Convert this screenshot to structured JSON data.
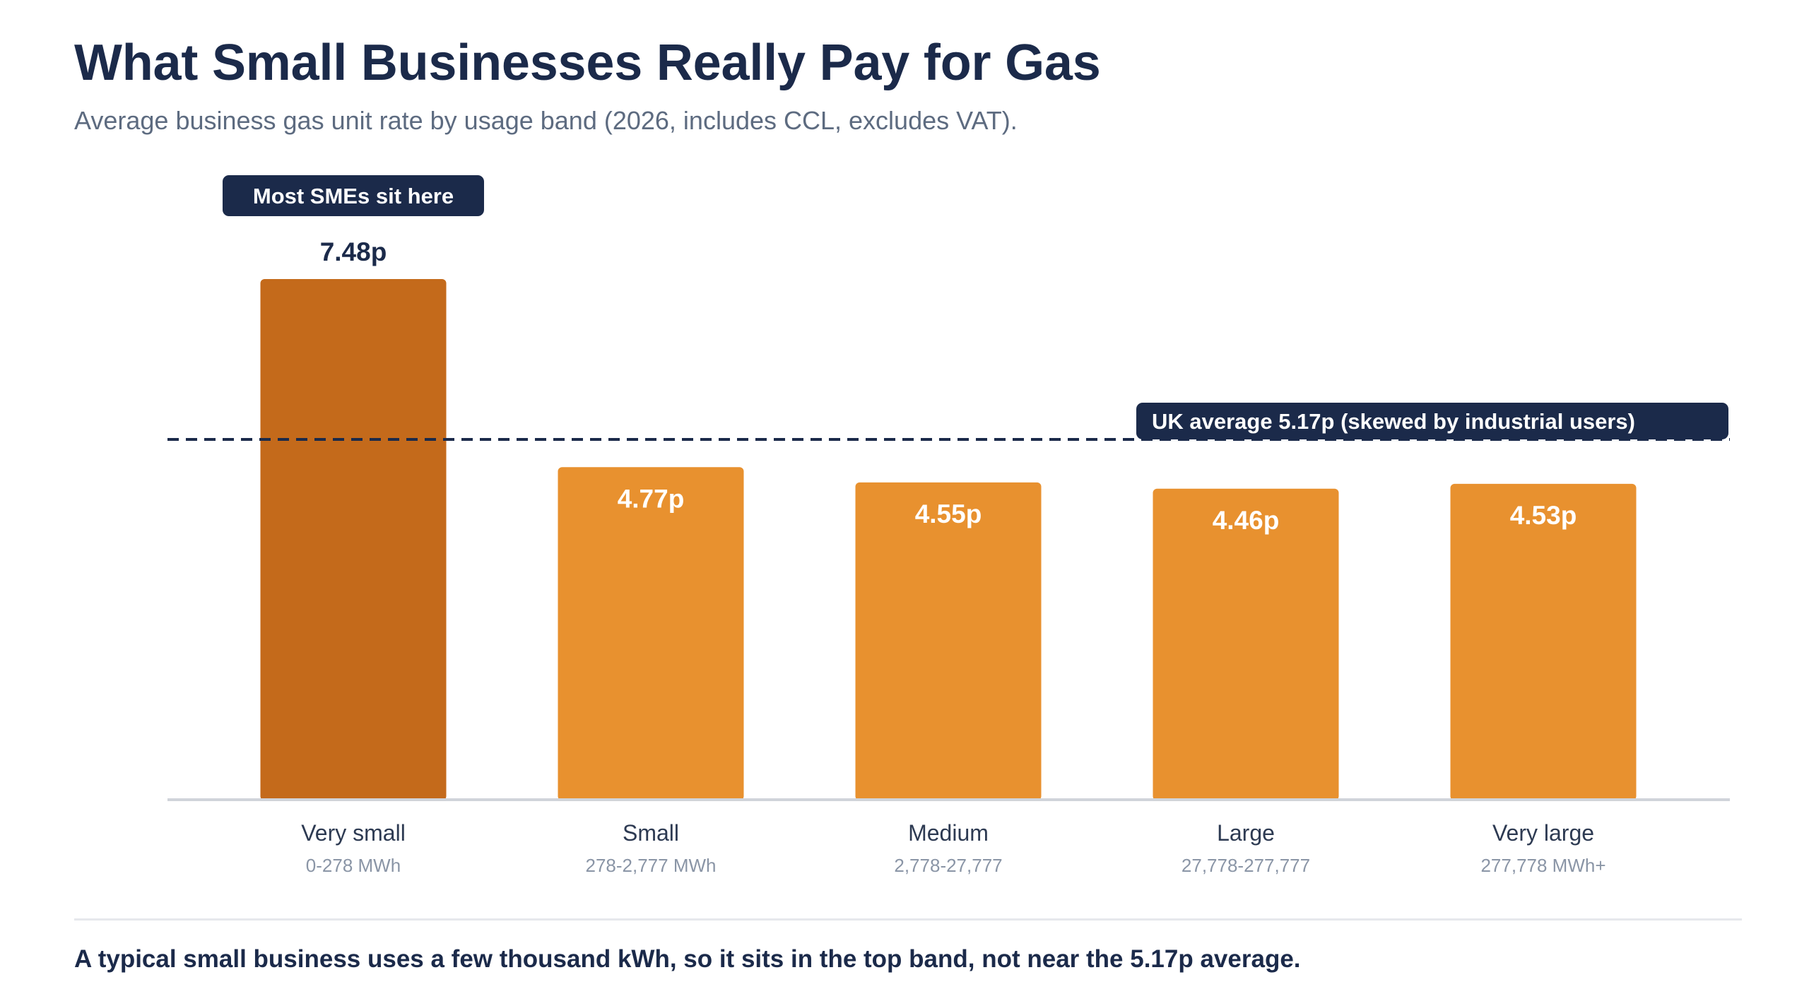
{
  "header": {
    "title": "What Small Businesses Really Pay for Gas",
    "subtitle": "Average business gas unit rate by usage band (2026, includes CCL, excludes VAT)."
  },
  "chart_data": {
    "type": "bar",
    "title": "What Small Businesses Really Pay for Gas",
    "subtitle": "Average business gas unit rate by usage band (2026, includes CCL, excludes VAT).",
    "categories": [
      "Very small",
      "Small",
      "Medium",
      "Large",
      "Very large"
    ],
    "category_ranges": [
      "0-278 MWh",
      "278-2,777 MWh",
      "2,778-27,777",
      "27,778-277,777",
      "277,778 MWh+"
    ],
    "values": [
      7.48,
      4.77,
      4.55,
      4.46,
      4.53
    ],
    "value_labels": [
      "7.48p",
      "4.77p",
      "4.55p",
      "4.46p",
      "4.53p"
    ],
    "unit": "p",
    "ylim": [
      0,
      7.48
    ],
    "grid": false,
    "highlighted_category": "Very small",
    "colors": {
      "highlight": "#c46a1b",
      "bar": "#e8912f",
      "label_dark": "#1b2a4a",
      "label_light": "#ffffff",
      "reference_line": "#1b2a4a",
      "axis": "#d0d4da"
    },
    "reference_line": {
      "value": 5.17,
      "label": "UK average 5.17p (skewed by industrial users)"
    },
    "annotations": [
      {
        "category": "Very small",
        "text": "Most SMEs sit here"
      }
    ]
  },
  "footer": {
    "note": "A typical small business uses a few thousand kWh, so it sits in the top band, not near the 5.17p average."
  }
}
